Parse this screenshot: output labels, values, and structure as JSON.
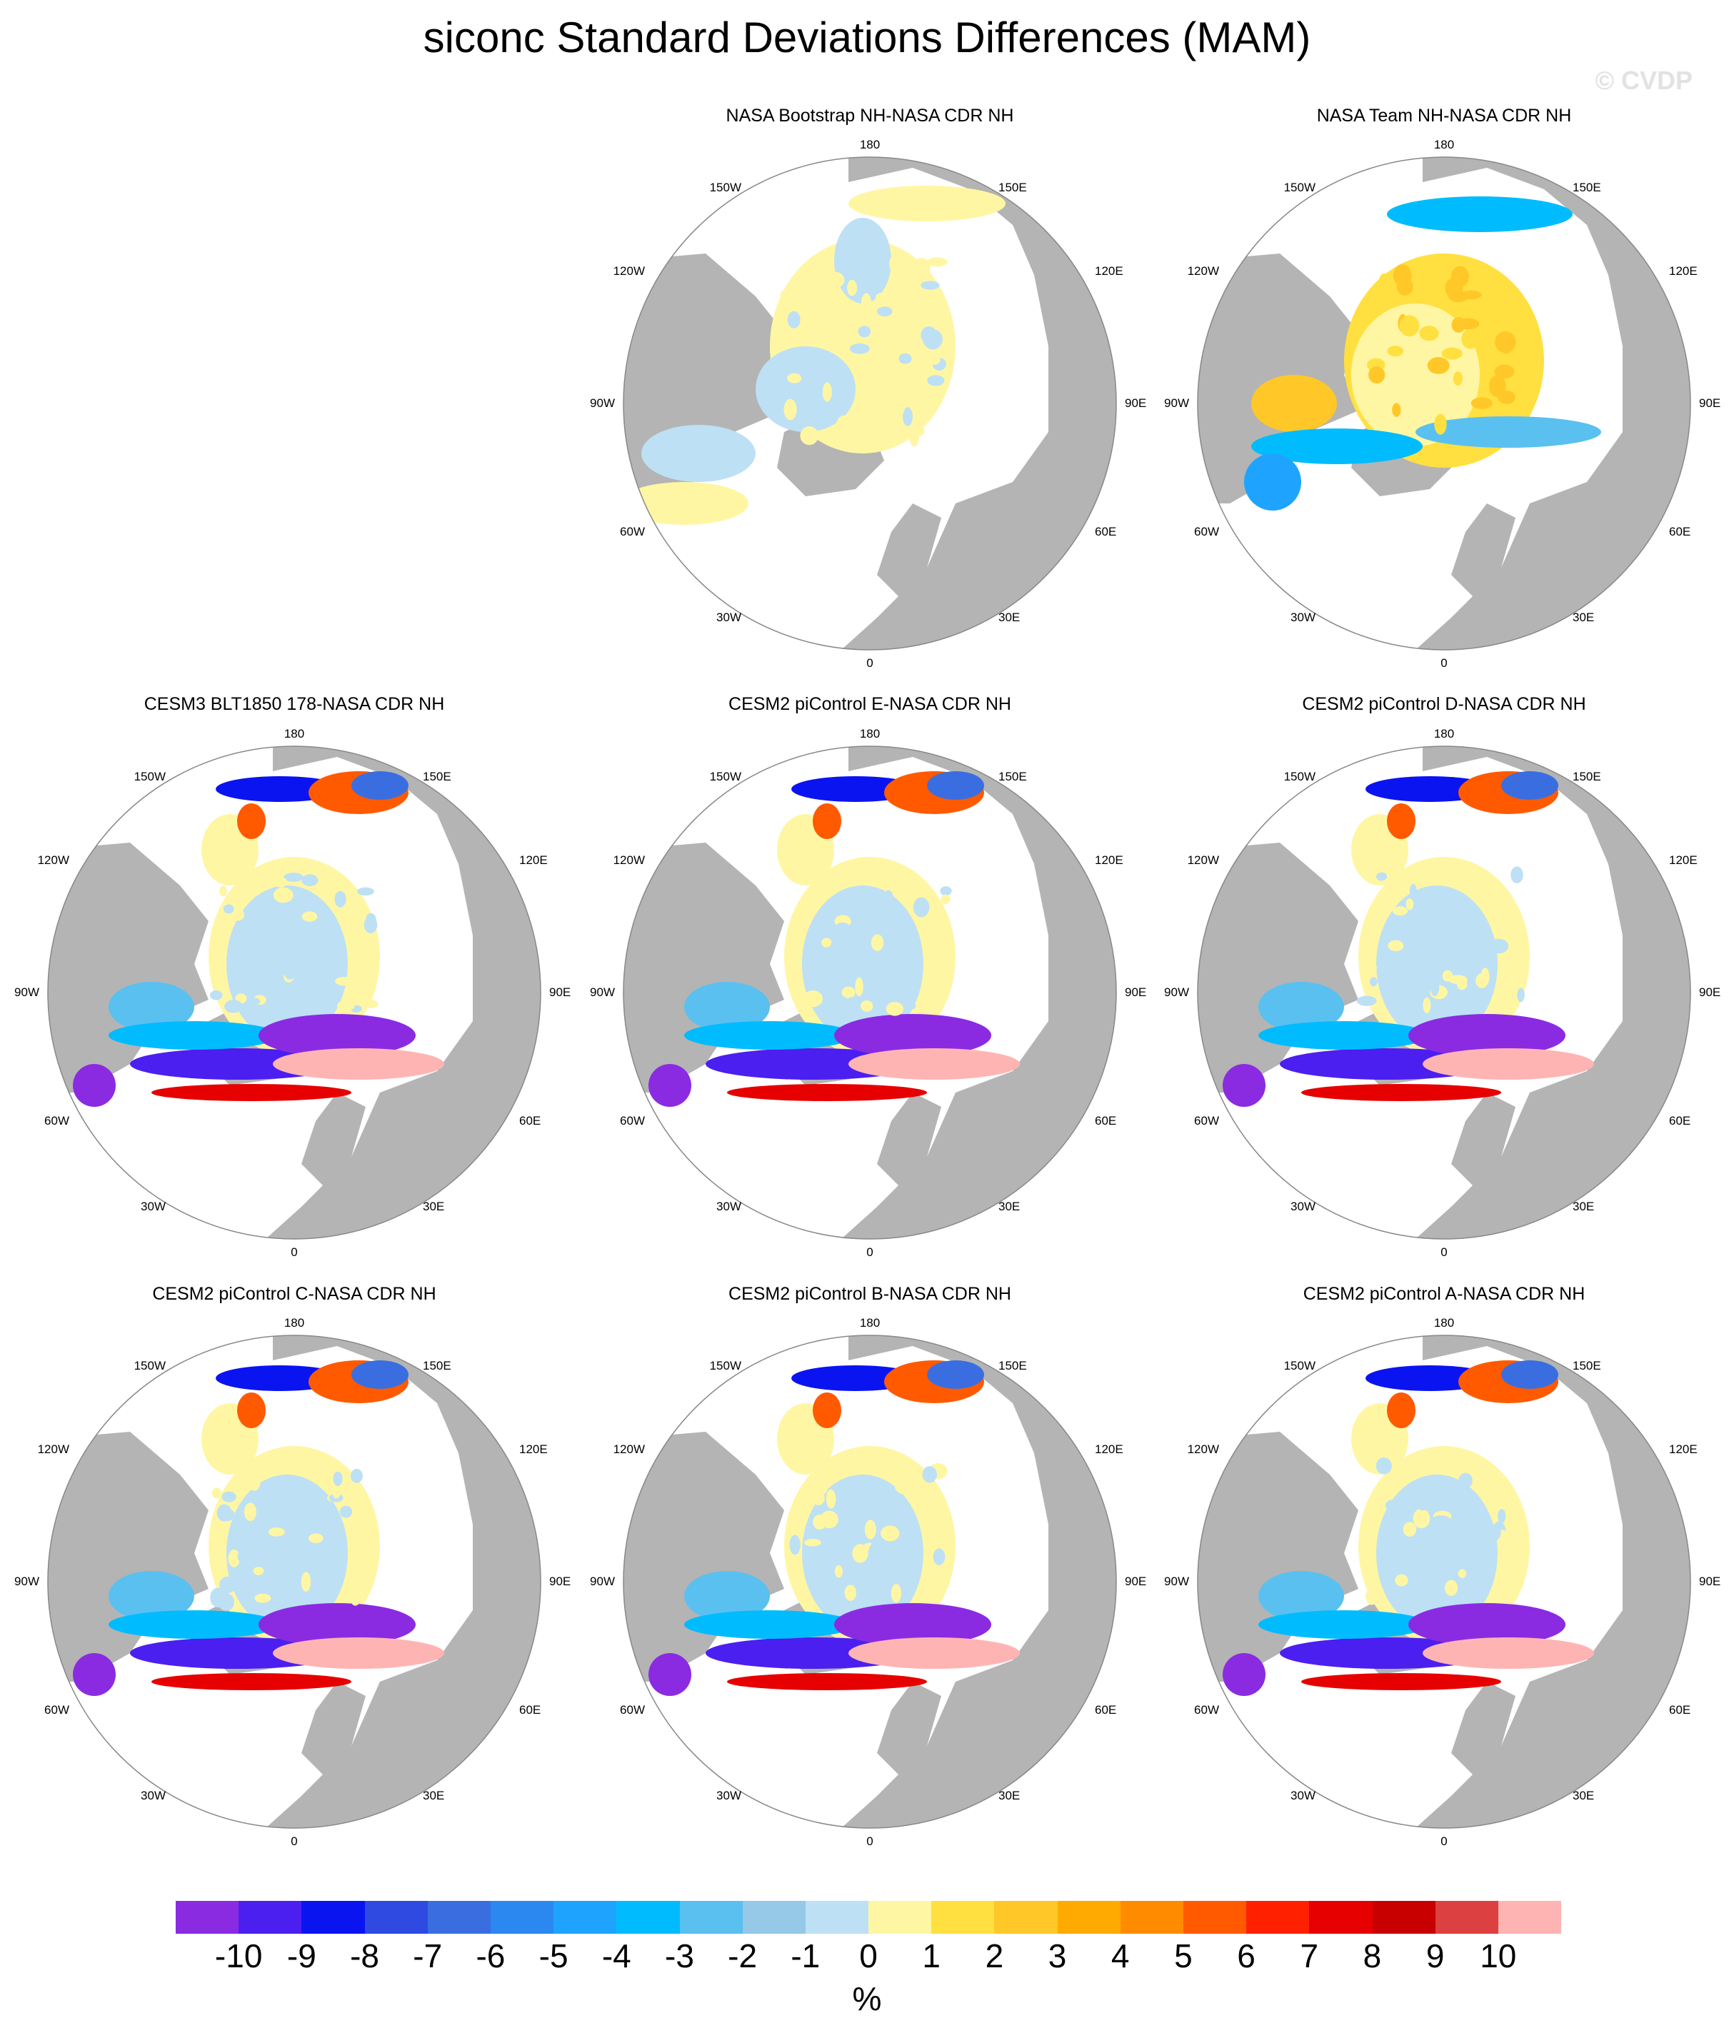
{
  "title": "siconc Standard Deviations Differences (MAM)",
  "credit": "© CVDP",
  "colors": {
    "land": "#b4b4b4",
    "ocean": "#ffffff",
    "scale": [
      "#8a2be2",
      "#4b1ff0",
      "#0a14f0",
      "#2e4ae0",
      "#3a6ee0",
      "#2a88f0",
      "#1ea4ff",
      "#00bcff",
      "#5ac0f0",
      "#96c8e8",
      "#bde0f4",
      "#fff6a4",
      "#ffe040",
      "#ffc828",
      "#ffaa00",
      "#ff8c00",
      "#ff5a00",
      "#ff2000",
      "#e60000",
      "#c80000",
      "#dc4040",
      "#ffb4b4"
    ]
  },
  "map_labels": {
    "top": "180",
    "bottom": "0",
    "top_left": "150W",
    "top_right": "150E",
    "upper_left": "120W",
    "upper_right": "120E",
    "left": "90W",
    "right": "90E",
    "lower_left": "60W",
    "lower_right": "60E",
    "bottom_left": "30W",
    "bottom_right": "30E"
  },
  "panels": [
    {
      "title": "NASA Bootstrap NH-NASA CDR NH",
      "pattern": "bootstrap"
    },
    {
      "title": "NASA Team NH-NASA CDR NH",
      "pattern": "team"
    },
    {
      "title": "CESM3 BLT1850 178-NASA CDR NH",
      "pattern": "model"
    },
    {
      "title": "CESM2 piControl E-NASA CDR NH",
      "pattern": "model"
    },
    {
      "title": "CESM2 piControl D-NASA CDR NH",
      "pattern": "model"
    },
    {
      "title": "CESM2 piControl C-NASA CDR NH",
      "pattern": "model"
    },
    {
      "title": "CESM2 piControl B-NASA CDR NH",
      "pattern": "model"
    },
    {
      "title": "CESM2 piControl A-NASA CDR NH",
      "pattern": "model"
    }
  ],
  "colorbar": {
    "labels": [
      "-10",
      "-9",
      "-8",
      "-7",
      "-6",
      "-5",
      "-4",
      "-3",
      "-2",
      "-1",
      "0",
      "1",
      "2",
      "3",
      "4",
      "5",
      "6",
      "7",
      "8",
      "9",
      "10"
    ],
    "unit": "%"
  }
}
